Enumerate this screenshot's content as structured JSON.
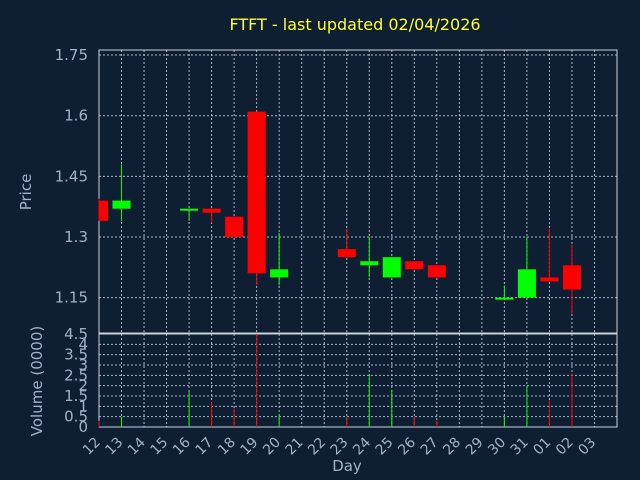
{
  "title": "FTFT - last updated 02/04/2026",
  "colors": {
    "up": "#00ff00",
    "down": "#ff0000",
    "background": "#0f1f33",
    "title": "#ffff33",
    "text": "#9fb3c8"
  },
  "chart_data": [
    {
      "type": "candlestick",
      "ylabel": "Price",
      "ylim": [
        1.0625,
        1.7625
      ],
      "yticks": [
        1.15,
        1.3,
        1.45,
        1.6,
        1.75
      ],
      "ytick_labels": [
        "1.15",
        "1.3",
        "1.45",
        "1.6",
        "1.75"
      ],
      "grid": true,
      "candles": [
        {
          "day": "12",
          "open": 1.39,
          "high": 1.395,
          "low": 1.34,
          "close": 1.34
        },
        {
          "day": "13",
          "open": 1.37,
          "high": 1.48,
          "low": 1.34,
          "close": 1.39
        },
        {
          "day": "16",
          "open": 1.365,
          "high": 1.37,
          "low": 1.34,
          "close": 1.37
        },
        {
          "day": "17",
          "open": 1.37,
          "high": 1.37,
          "low": 1.335,
          "close": 1.36
        },
        {
          "day": "18",
          "open": 1.35,
          "high": 1.35,
          "low": 1.3,
          "close": 1.3
        },
        {
          "day": "19",
          "open": 1.61,
          "high": 1.61,
          "low": 1.18,
          "close": 1.21
        },
        {
          "day": "20",
          "open": 1.2,
          "high": 1.31,
          "low": 1.18,
          "close": 1.22
        },
        {
          "day": "23",
          "open": 1.27,
          "high": 1.32,
          "low": 1.25,
          "close": 1.25
        },
        {
          "day": "24",
          "open": 1.23,
          "high": 1.3,
          "low": 1.2,
          "close": 1.24
        },
        {
          "day": "25",
          "open": 1.2,
          "high": 1.25,
          "low": 1.2,
          "close": 1.25
        },
        {
          "day": "26",
          "open": 1.24,
          "high": 1.24,
          "low": 1.22,
          "close": 1.22
        },
        {
          "day": "27",
          "open": 1.23,
          "high": 1.23,
          "low": 1.2,
          "close": 1.2
        },
        {
          "day": "30",
          "open": 1.145,
          "high": 1.18,
          "low": 1.145,
          "close": 1.15
        },
        {
          "day": "31",
          "open": 1.15,
          "high": 1.3,
          "low": 1.15,
          "close": 1.22
        },
        {
          "day": "01",
          "open": 1.2,
          "high": 1.32,
          "low": 1.19,
          "close": 1.19
        },
        {
          "day": "02",
          "open": 1.23,
          "high": 1.28,
          "low": 1.11,
          "close": 1.17
        }
      ]
    },
    {
      "type": "bar",
      "ylabel": "Volume (0000)",
      "ylim": [
        0,
        4.5
      ],
      "yticks": [
        0,
        0.5,
        1,
        1.5,
        2,
        2.5,
        3,
        3.5,
        4,
        4.5
      ],
      "ytick_labels": [
        "0",
        "0.5",
        "1",
        "1.5",
        "2",
        "2.5",
        "3",
        "3.5",
        "4",
        "4.5"
      ],
      "xlabel": "Day",
      "categories": [
        "12",
        "13",
        "14",
        "15",
        "16",
        "17",
        "18",
        "19",
        "20",
        "21",
        "22",
        "23",
        "24",
        "25",
        "26",
        "27",
        "28",
        "29",
        "30",
        "31",
        "01",
        "02",
        "03"
      ],
      "series": [
        {
          "values": [
            0.3,
            0.5,
            0,
            0,
            1.7,
            1.2,
            0.9,
            4.5,
            0.6,
            0,
            0,
            0.5,
            2.5,
            1.8,
            0.5,
            0.3,
            0,
            0,
            0.5,
            2.0,
            1.3,
            2.6,
            0
          ],
          "colors": [
            "down",
            "up",
            "",
            "",
            "up",
            "down",
            "down",
            "down",
            "up",
            "",
            "",
            "down",
            "up",
            "up",
            "down",
            "down",
            "",
            "",
            "up",
            "up",
            "down",
            "down",
            ""
          ]
        }
      ]
    }
  ]
}
